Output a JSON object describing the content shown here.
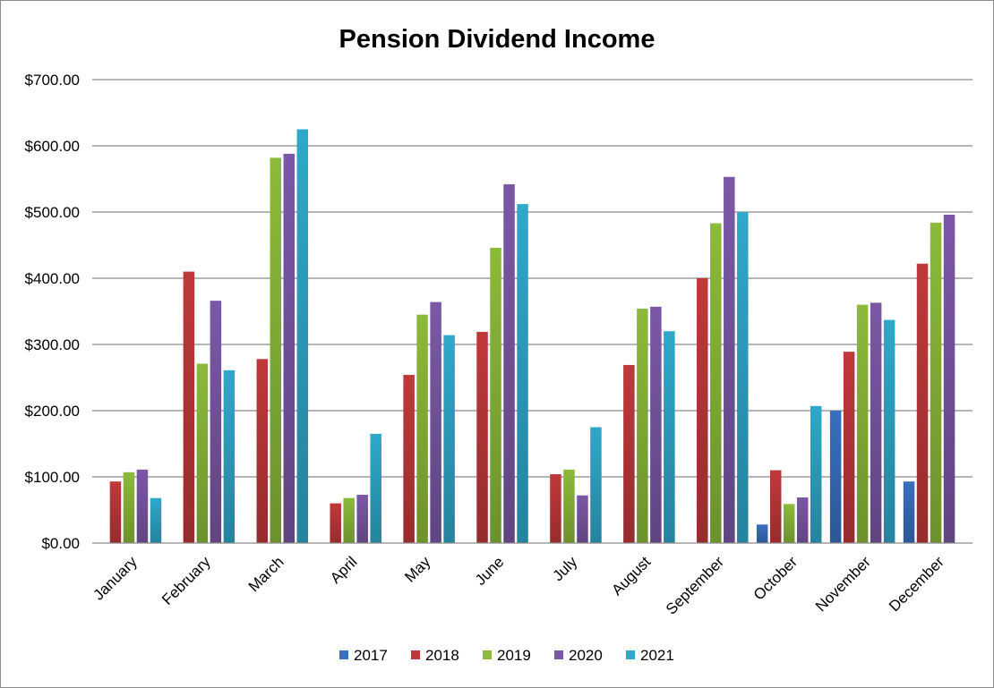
{
  "chart_data": {
    "type": "bar",
    "title": "Pension Dividend Income",
    "xlabel": "",
    "ylabel": "",
    "ylim": [
      0,
      700
    ],
    "yticks": [
      "$0.00",
      "$100.00",
      "$200.00",
      "$300.00",
      "$400.00",
      "$500.00",
      "$600.00",
      "$700.00"
    ],
    "grid": true,
    "legend_position": "bottom",
    "categories": [
      "January",
      "February",
      "March",
      "April",
      "May",
      "June",
      "July",
      "August",
      "September",
      "October",
      "November",
      "December"
    ],
    "series": [
      {
        "name": "2017",
        "color": "#3a6fbf",
        "values": [
          0,
          0,
          0,
          0,
          0,
          0,
          0,
          0,
          0,
          28,
          200,
          93
        ]
      },
      {
        "name": "2018",
        "color": "#c0393a",
        "values": [
          93,
          410,
          278,
          60,
          254,
          319,
          104,
          269,
          400,
          110,
          289,
          422
        ]
      },
      {
        "name": "2019",
        "color": "#8cba3a",
        "values": [
          107,
          271,
          582,
          68,
          345,
          446,
          111,
          354,
          483,
          59,
          360,
          484
        ]
      },
      {
        "name": "2020",
        "color": "#7b58a6",
        "values": [
          111,
          366,
          588,
          73,
          364,
          542,
          72,
          357,
          553,
          69,
          363,
          496
        ]
      },
      {
        "name": "2021",
        "color": "#2fa8c9",
        "values": [
          68,
          261,
          625,
          165,
          314,
          512,
          175,
          320,
          500,
          207,
          337,
          0
        ]
      }
    ]
  }
}
